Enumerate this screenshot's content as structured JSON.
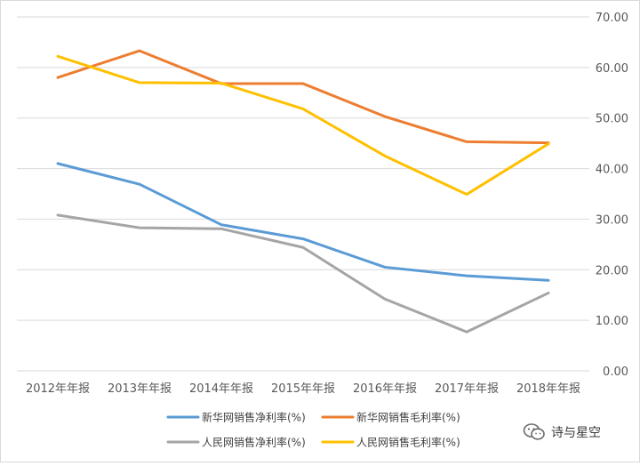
{
  "chart_data": {
    "type": "line",
    "categories": [
      "2012年年报",
      "2013年年报",
      "2014年年报",
      "2015年年报",
      "2016年年报",
      "2017年年报",
      "2018年年报"
    ],
    "series": [
      {
        "name": "新华网销售净利率(%)",
        "color": "#5b9bd5",
        "values": [
          41.0,
          36.9,
          28.9,
          26.1,
          20.5,
          18.8,
          17.9
        ]
      },
      {
        "name": "新华网销售毛利率(%)",
        "color": "#ed7d31",
        "values": [
          58.0,
          63.3,
          56.8,
          56.8,
          50.3,
          45.3,
          45.1
        ]
      },
      {
        "name": "人民网销售净利率(%)",
        "color": "#a5a5a5",
        "values": [
          30.8,
          28.3,
          28.1,
          24.4,
          14.2,
          7.7,
          15.4
        ]
      },
      {
        "name": "人民网销售毛利率(%)",
        "color": "#ffc000",
        "values": [
          62.2,
          57.0,
          56.9,
          51.8,
          42.5,
          34.9,
          44.9
        ]
      }
    ],
    "ylim": [
      0,
      70
    ],
    "yticks": [
      "0.00",
      "10.00",
      "20.00",
      "30.00",
      "40.00",
      "50.00",
      "60.00",
      "70.00"
    ],
    "y_axis_position": "right",
    "grid": true,
    "legend_position": "bottom",
    "title": "",
    "xlabel": "",
    "ylabel": ""
  },
  "watermark": {
    "text": "诗与星空",
    "icon": "wechat-icon"
  }
}
